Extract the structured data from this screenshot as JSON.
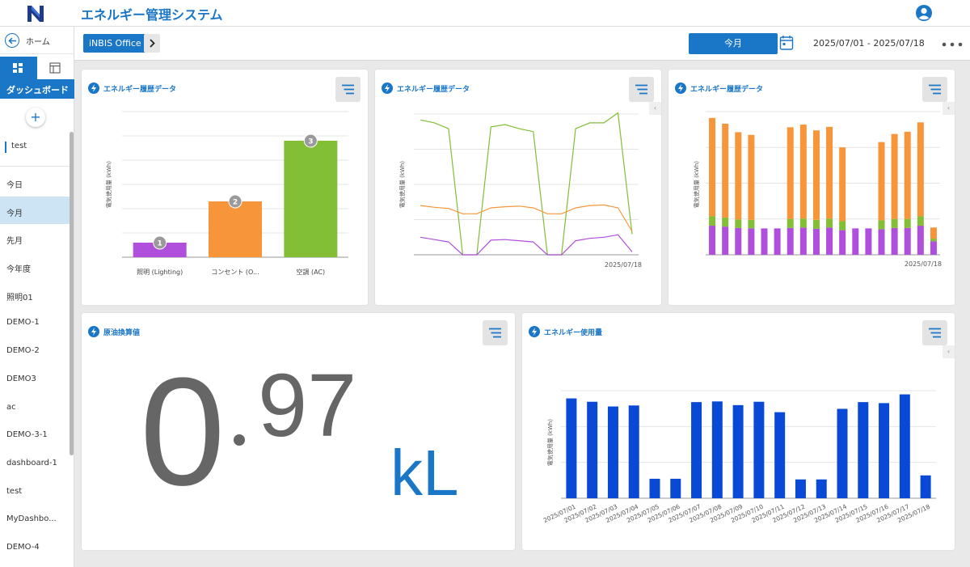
{
  "header": {
    "app_title": "エネルギー管理システム"
  },
  "sidebar": {
    "home_label": "ホーム",
    "dashboard_label": "ダッシュボード",
    "add_symbol": "+",
    "dashboard_item": "test",
    "items": [
      "今日",
      "今月",
      "先月",
      "今年度",
      "照明01",
      "DEMO-1",
      "DEMO-2",
      "DEMO3",
      "ac",
      "DEMO-3-1",
      "dashboard-1",
      "test",
      "MyDashbo...",
      "DEMO-4"
    ],
    "active_item": "今月"
  },
  "filter": {
    "office": "iNBIS Office",
    "period_button": "今月",
    "date_range": "2025/07/01 - 2025/07/18"
  },
  "cards": {
    "bar_card_title": "エネルギー履歴データ",
    "line_card_title": "エネルギー履歴データ",
    "stack_card_title": "エネルギー履歴データ",
    "oil_card_title": "原油換算値",
    "usage_card_title": "エネルギー使用量",
    "collapse_symbol": "‹"
  },
  "oil_value": {
    "integer": "0",
    "decimal": "97",
    "unit": "kL"
  },
  "colors": {
    "accent": "#1a76c7",
    "lighting": "#b04fdc",
    "outlet": "#f7953a",
    "ac": "#82be36",
    "usage_bar": "#0a49d6"
  },
  "chart_data": [
    {
      "type": "bar",
      "ylabel": "電気使用量 (kWh)",
      "categories": [
        "照明 (Lighting)",
        "コンセント (O...",
        "空調 (AC)"
      ],
      "values": [
        6,
        23,
        48
      ],
      "ranks": [
        "1",
        "2",
        "3"
      ],
      "ylim": [
        0,
        60
      ],
      "grid": true
    },
    {
      "type": "line",
      "ylabel": "電気使用量 (kWh)",
      "x_end_label": "2025/07/18",
      "ylim": [
        0,
        2.4
      ],
      "series": [
        {
          "values": [
            2.3,
            2.25,
            2.15,
            0.0,
            0.0,
            2.18,
            2.22,
            2.15,
            2.1,
            0.0,
            0.0,
            2.15,
            2.25,
            2.25,
            2.42,
            0.35
          ]
        },
        {
          "values": [
            0.84,
            0.81,
            0.79,
            0.7,
            0.7,
            0.8,
            0.82,
            0.83,
            0.8,
            0.7,
            0.7,
            0.8,
            0.84,
            0.85,
            0.8,
            0.4
          ]
        },
        {
          "values": [
            0.3,
            0.26,
            0.22,
            0.0,
            0.0,
            0.25,
            0.26,
            0.24,
            0.22,
            0.0,
            0.0,
            0.24,
            0.28,
            0.3,
            0.34,
            0.05
          ]
        }
      ]
    },
    {
      "type": "bar",
      "stacked": true,
      "ylabel": "電気使用量 (kWh)",
      "x_end_label": "2025/07/18",
      "ylim": [
        0,
        3.2
      ],
      "series": [
        {
          "values": [
            0.21,
            0.2,
            0.19,
            0.19,
            0,
            0,
            0.2,
            0.2,
            0.2,
            0.2,
            0.2,
            0,
            0,
            0.2,
            0.2,
            0.2,
            0.21,
            0.06
          ]
        },
        {
          "values": [
            2.2,
            2.1,
            1.95,
            1.9,
            0,
            0,
            2.05,
            2.1,
            2.0,
            2.05,
            1.65,
            0,
            0,
            1.75,
            1.9,
            1.95,
            2.1,
            0.25
          ]
        },
        {
          "values": [
            0.65,
            0.63,
            0.6,
            0.59,
            0.59,
            0.59,
            0.6,
            0.61,
            0.58,
            0.61,
            0.55,
            0.59,
            0.59,
            0.57,
            0.6,
            0.6,
            0.65,
            0.3
          ]
        }
      ]
    },
    {
      "type": "bar",
      "ylabel": "電気使用量 (kWh)",
      "categories": [
        "2025/07/01",
        "2025/07/02",
        "2025/07/03",
        "2025/07/04",
        "2025/07/05",
        "2025/07/06",
        "2025/07/07",
        "2025/07/08",
        "2025/07/09",
        "2025/07/10",
        "2025/07/11",
        "2025/07/12",
        "2025/07/13",
        "2025/07/14",
        "2025/07/15",
        "2025/07/16",
        "2025/07/17",
        "2025/07/18"
      ],
      "values": [
        2.97,
        2.87,
        2.73,
        2.76,
        0.58,
        0.58,
        2.86,
        2.88,
        2.77,
        2.87,
        2.56,
        0.56,
        0.56,
        2.66,
        2.86,
        2.83,
        3.09,
        0.68
      ],
      "ylim": [
        0,
        3.2
      ],
      "grid": true
    }
  ]
}
